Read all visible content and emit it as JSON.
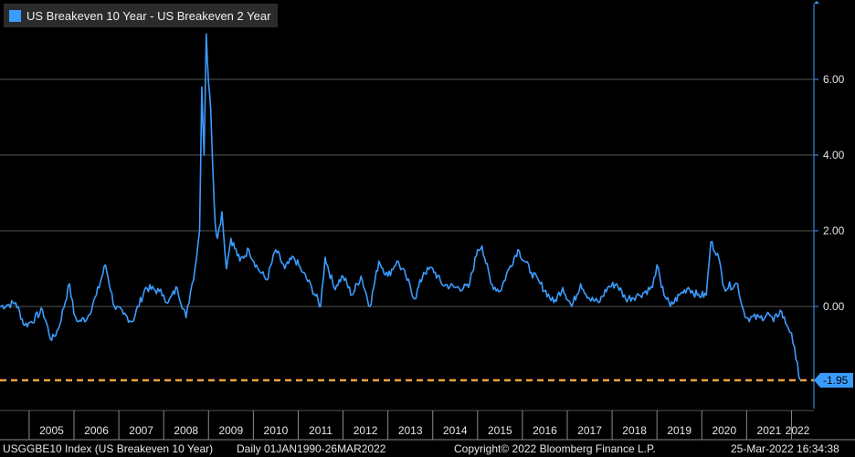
{
  "legend": {
    "label": "US Breakeven 10 Year - US Breakeven 2 Year",
    "color": "#3b9cff"
  },
  "footer": {
    "index": "USGGBE10 Index (US Breakeven 10 Year)",
    "range": "Daily 01JAN1990-26MAR2022",
    "copyright": "Copyright© 2022 Bloomberg Finance L.P.",
    "timestamp": "25-Mar-2022 16:34:38"
  },
  "last_value_label": "-1.95",
  "colors": {
    "line": "#3b9cff",
    "reference": "#f5a340",
    "axis": "#3b9cff",
    "grid": "#555555",
    "last_value_bg": "#3b9cff"
  },
  "chart_data": {
    "type": "line",
    "title": "",
    "xlabel": "",
    "ylabel": "",
    "ylim": [
      -2.7,
      8.0
    ],
    "yticks": [
      0,
      2,
      4,
      6
    ],
    "ytick_labels": [
      "0.00",
      "2.00",
      "4.00",
      "6.00"
    ],
    "xlim": [
      2004.35,
      2022.5
    ],
    "year_labels": [
      "2005",
      "2006",
      "2007",
      "2008",
      "2009",
      "2010",
      "2011",
      "2012",
      "2013",
      "2014",
      "2015",
      "2016",
      "2017",
      "2018",
      "2019",
      "2020",
      "2021",
      "2022"
    ],
    "grid": true,
    "legend_position": "top-left",
    "reference_line": {
      "value": -1.95,
      "style": "dashed"
    },
    "series": [
      {
        "name": "US Breakeven 10 Year - US Breakeven 2 Year",
        "points": [
          [
            2004.35,
            0.0
          ],
          [
            2004.55,
            0.05
          ],
          [
            2004.7,
            0.1
          ],
          [
            2004.9,
            -0.5
          ],
          [
            2005.05,
            -0.4
          ],
          [
            2005.3,
            -0.1
          ],
          [
            2005.5,
            -0.9
          ],
          [
            2005.65,
            -0.6
          ],
          [
            2005.9,
            0.6
          ],
          [
            2006.0,
            -0.2
          ],
          [
            2006.1,
            -0.4
          ],
          [
            2006.3,
            -0.3
          ],
          [
            2006.5,
            0.3
          ],
          [
            2006.7,
            1.1
          ],
          [
            2006.9,
            0.0
          ],
          [
            2007.1,
            -0.2
          ],
          [
            2007.3,
            -0.4
          ],
          [
            2007.6,
            0.5
          ],
          [
            2007.9,
            0.4
          ],
          [
            2008.0,
            0.3
          ],
          [
            2008.1,
            0.1
          ],
          [
            2008.3,
            0.5
          ],
          [
            2008.5,
            -0.3
          ],
          [
            2008.6,
            0.4
          ],
          [
            2008.7,
            1.0
          ],
          [
            2008.8,
            2.0
          ],
          [
            2008.85,
            5.8
          ],
          [
            2008.9,
            4.0
          ],
          [
            2008.95,
            7.2
          ],
          [
            2009.0,
            5.9
          ],
          [
            2009.05,
            5.2
          ],
          [
            2009.1,
            3.5
          ],
          [
            2009.15,
            2.2
          ],
          [
            2009.2,
            1.8
          ],
          [
            2009.3,
            2.5
          ],
          [
            2009.4,
            1.0
          ],
          [
            2009.5,
            1.8
          ],
          [
            2009.7,
            1.2
          ],
          [
            2009.9,
            1.5
          ],
          [
            2010.1,
            1.0
          ],
          [
            2010.3,
            0.7
          ],
          [
            2010.5,
            1.5
          ],
          [
            2010.7,
            1.0
          ],
          [
            2010.9,
            1.3
          ],
          [
            2011.1,
            0.9
          ],
          [
            2011.3,
            0.5
          ],
          [
            2011.5,
            0.0
          ],
          [
            2011.6,
            1.3
          ],
          [
            2011.8,
            0.5
          ],
          [
            2012.0,
            0.8
          ],
          [
            2012.2,
            0.3
          ],
          [
            2012.4,
            0.8
          ],
          [
            2012.6,
            0.0
          ],
          [
            2012.8,
            1.2
          ],
          [
            2013.0,
            0.8
          ],
          [
            2013.2,
            1.2
          ],
          [
            2013.4,
            0.8
          ],
          [
            2013.6,
            0.2
          ],
          [
            2013.8,
            0.9
          ],
          [
            2014.0,
            1.0
          ],
          [
            2014.2,
            0.6
          ],
          [
            2014.5,
            0.5
          ],
          [
            2014.8,
            0.5
          ],
          [
            2015.0,
            1.5
          ],
          [
            2015.1,
            1.6
          ],
          [
            2015.3,
            0.6
          ],
          [
            2015.5,
            0.4
          ],
          [
            2015.7,
            1.0
          ],
          [
            2015.9,
            1.5
          ],
          [
            2016.2,
            0.9
          ],
          [
            2016.4,
            0.6
          ],
          [
            2016.7,
            0.1
          ],
          [
            2016.9,
            0.5
          ],
          [
            2017.1,
            0.0
          ],
          [
            2017.3,
            0.6
          ],
          [
            2017.5,
            0.2
          ],
          [
            2017.7,
            0.1
          ],
          [
            2017.9,
            0.5
          ],
          [
            2018.1,
            0.6
          ],
          [
            2018.3,
            0.2
          ],
          [
            2018.6,
            0.3
          ],
          [
            2018.9,
            0.5
          ],
          [
            2019.0,
            1.1
          ],
          [
            2019.1,
            0.5
          ],
          [
            2019.3,
            0.0
          ],
          [
            2019.5,
            0.3
          ],
          [
            2019.7,
            0.5
          ],
          [
            2019.9,
            0.3
          ],
          [
            2020.1,
            0.3
          ],
          [
            2020.2,
            1.7
          ],
          [
            2020.35,
            1.4
          ],
          [
            2020.5,
            0.5
          ],
          [
            2020.8,
            0.6
          ],
          [
            2020.9,
            0.0
          ],
          [
            2021.0,
            -0.3
          ],
          [
            2021.3,
            -0.3
          ],
          [
            2021.5,
            -0.2
          ],
          [
            2021.6,
            -0.4
          ],
          [
            2021.75,
            -0.1
          ],
          [
            2021.9,
            -0.5
          ],
          [
            2022.0,
            -0.7
          ],
          [
            2022.1,
            -1.4
          ],
          [
            2022.2,
            -1.95
          ]
        ]
      }
    ]
  }
}
